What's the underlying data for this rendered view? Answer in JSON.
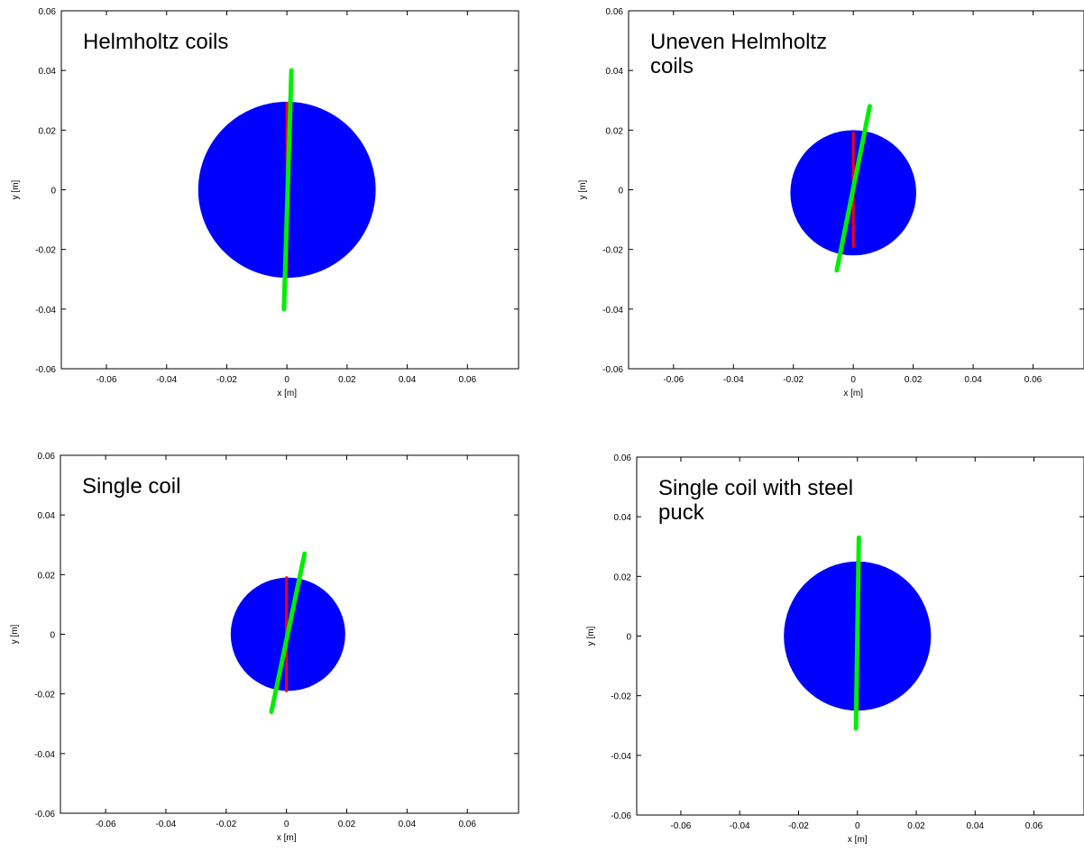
{
  "colors": {
    "disc": "#0000ff",
    "red_line": "#ff0000",
    "green_line": "#00ee00",
    "axes": "#000000"
  },
  "chart_data": [
    {
      "type": "scatter",
      "title_lines": [
        "Helmholtz coils"
      ],
      "xlabel": "x [m]",
      "ylabel": "y [m]",
      "xlim": [
        -0.075,
        0.077
      ],
      "ylim": [
        -0.06,
        0.06
      ],
      "xticks": [
        -0.06,
        -0.04,
        -0.02,
        0,
        0.02,
        0.04,
        0.06
      ],
      "xtick_labels": [
        "-0.06",
        "-0.04",
        "-0.02",
        "0",
        "0.02",
        "0.04",
        "0.06"
      ],
      "yticks": [
        -0.06,
        -0.04,
        -0.02,
        0,
        0.02,
        0.04,
        0.06
      ],
      "ytick_labels": [
        "-0.06",
        "-0.04",
        "-0.02",
        "0",
        "0.02",
        "0.04",
        "0.06"
      ],
      "disc": {
        "center": [
          0,
          0
        ],
        "radius": 0.0295
      },
      "series": [
        {
          "color": "#ff0000",
          "segments": [
            [
              [
                0,
                0.029
              ],
              [
                0,
                -0.012
              ]
            ],
            [
              [
                0,
                -0.014
              ],
              [
                0,
                -0.027
              ]
            ]
          ]
        },
        {
          "color": "#00ee00",
          "segments": [
            [
              [
                -0.001,
                -0.04
              ],
              [
                0.0015,
                0.04
              ]
            ]
          ]
        }
      ],
      "grid": false
    },
    {
      "type": "scatter",
      "title_lines": [
        "Uneven Helmholtz",
        "coils"
      ],
      "xlabel": "x [m]",
      "ylabel": "y [m]",
      "xlim": [
        -0.075,
        0.077
      ],
      "ylim": [
        -0.06,
        0.06
      ],
      "xticks": [
        -0.06,
        -0.04,
        -0.02,
        0,
        0.02,
        0.04,
        0.06
      ],
      "xtick_labels": [
        "-0.06",
        "-0.04",
        "-0.02",
        "0",
        "0.02",
        "0.04",
        "0.06"
      ],
      "yticks": [
        -0.06,
        -0.04,
        -0.02,
        0,
        0.02,
        0.04,
        0.06
      ],
      "ytick_labels": [
        "-0.06",
        "-0.04",
        "-0.02",
        "0",
        "0.02",
        "0.04",
        "0.06"
      ],
      "disc": {
        "center": [
          0,
          -0.001
        ],
        "radius": 0.021
      },
      "series": [
        {
          "color": "#ff0000",
          "segments": [
            [
              [
                0,
                0.019
              ],
              [
                0,
                -0.019
              ]
            ]
          ]
        },
        {
          "color": "#00ee00",
          "segments": [
            [
              [
                -0.0055,
                -0.027
              ],
              [
                0.0055,
                0.028
              ]
            ]
          ]
        }
      ],
      "grid": false
    },
    {
      "type": "scatter",
      "title_lines": [
        "Single coil"
      ],
      "xlabel": "x [m]",
      "ylabel": "y [m]",
      "xlim": [
        -0.075,
        0.077
      ],
      "ylim": [
        -0.06,
        0.06
      ],
      "xticks": [
        -0.06,
        -0.04,
        -0.02,
        0,
        0.02,
        0.04,
        0.06
      ],
      "xtick_labels": [
        "-0.06",
        "-0.04",
        "-0.02",
        "0",
        "0.02",
        "0.04",
        "0.06"
      ],
      "yticks": [
        -0.06,
        -0.04,
        -0.02,
        0,
        0.02,
        0.04,
        0.06
      ],
      "ytick_labels": [
        "-0.06",
        "-0.04",
        "-0.02",
        "0",
        "0.02",
        "0.04",
        "0.06"
      ],
      "disc": {
        "center": [
          0.0005,
          0
        ],
        "radius": 0.019
      },
      "series": [
        {
          "color": "#ff0000",
          "segments": [
            [
              [
                0,
                0.019
              ],
              [
                0,
                -0.019
              ]
            ]
          ]
        },
        {
          "color": "#00ee00",
          "segments": [
            [
              [
                -0.005,
                -0.026
              ],
              [
                0.006,
                0.027
              ]
            ]
          ]
        }
      ],
      "grid": false
    },
    {
      "type": "scatter",
      "title_lines": [
        "Single coil with steel",
        "puck"
      ],
      "xlabel": "x [m]",
      "ylabel": "y [m]",
      "xlim": [
        -0.075,
        0.077
      ],
      "ylim": [
        -0.06,
        0.06
      ],
      "xticks": [
        -0.06,
        -0.04,
        -0.02,
        0,
        0.02,
        0.04,
        0.06
      ],
      "xtick_labels": [
        "-0.06",
        "-0.04",
        "-0.02",
        "0",
        "0.02",
        "0.04",
        "0.06"
      ],
      "yticks": [
        -0.06,
        -0.04,
        -0.02,
        0,
        0.02,
        0.04,
        0.06
      ],
      "ytick_labels": [
        "-0.06",
        "-0.04",
        "-0.02",
        "0",
        "0.02",
        "0.04",
        "0.06"
      ],
      "disc": {
        "center": [
          0,
          0
        ],
        "radius": 0.025
      },
      "series": [
        {
          "color": "#ff0000",
          "segments": [
            [
              [
                0,
                0.025
              ],
              [
                0,
                -0.025
              ]
            ]
          ]
        },
        {
          "color": "#00ee00",
          "segments": [
            [
              [
                -0.0005,
                -0.031
              ],
              [
                0.0005,
                0.033
              ]
            ]
          ]
        }
      ],
      "grid": false
    }
  ]
}
